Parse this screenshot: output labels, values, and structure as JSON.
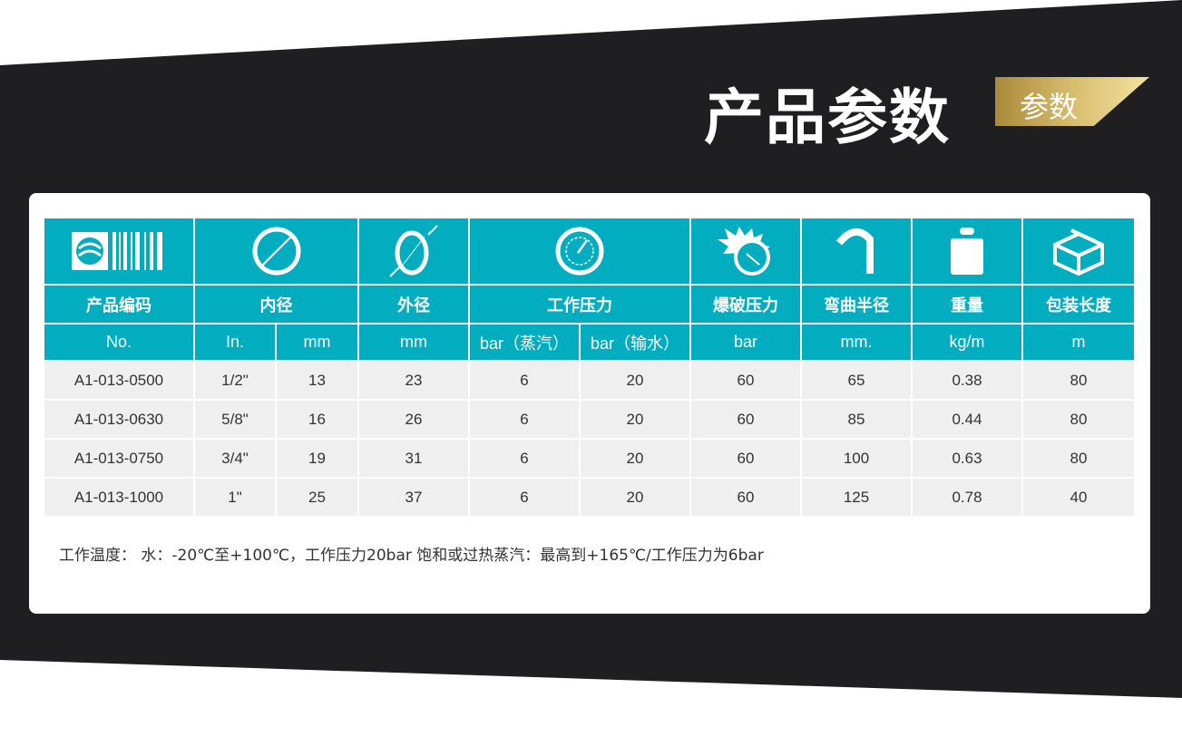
{
  "title": "产品参数",
  "badge": "参数",
  "colors": {
    "accent": "#02adc0",
    "band": "#1f1f21",
    "gold": "#d8bd6e"
  },
  "table": {
    "icons": [
      "barcode-icon",
      "inner-diameter-icon",
      "outer-diameter-icon",
      "pressure-gauge-icon",
      "burst-pressure-icon",
      "bend-radius-icon",
      "weight-icon",
      "package-box-icon"
    ],
    "headers": [
      "产品编码",
      "内径",
      "外径",
      "工作压力",
      "爆破压力",
      "弯曲半径",
      "重量",
      "包装长度"
    ],
    "units": [
      "No.",
      "In.",
      "mm",
      "mm",
      "bar（蒸汽）",
      "bar（输水）",
      "bar",
      "mm.",
      "kg/m",
      "m"
    ],
    "rows": [
      [
        "A1-013-0500",
        "1/2\"",
        "13",
        "23",
        "6",
        "20",
        "60",
        "65",
        "0.38",
        "80"
      ],
      [
        "A1-013-0630",
        "5/8\"",
        "16",
        "26",
        "6",
        "20",
        "60",
        "85",
        "0.44",
        "80"
      ],
      [
        "A1-013-0750",
        "3/4\"",
        "19",
        "31",
        "6",
        "20",
        "60",
        "100",
        "0.63",
        "80"
      ],
      [
        "A1-013-1000",
        "1\"",
        "25",
        "37",
        "6",
        "20",
        "60",
        "125",
        "0.78",
        "40"
      ]
    ]
  },
  "note": "工作温度：  水：-20℃至+100℃，工作压力20bar      饱和或过热蒸汽：最高到+165℃/工作压力为6bar"
}
